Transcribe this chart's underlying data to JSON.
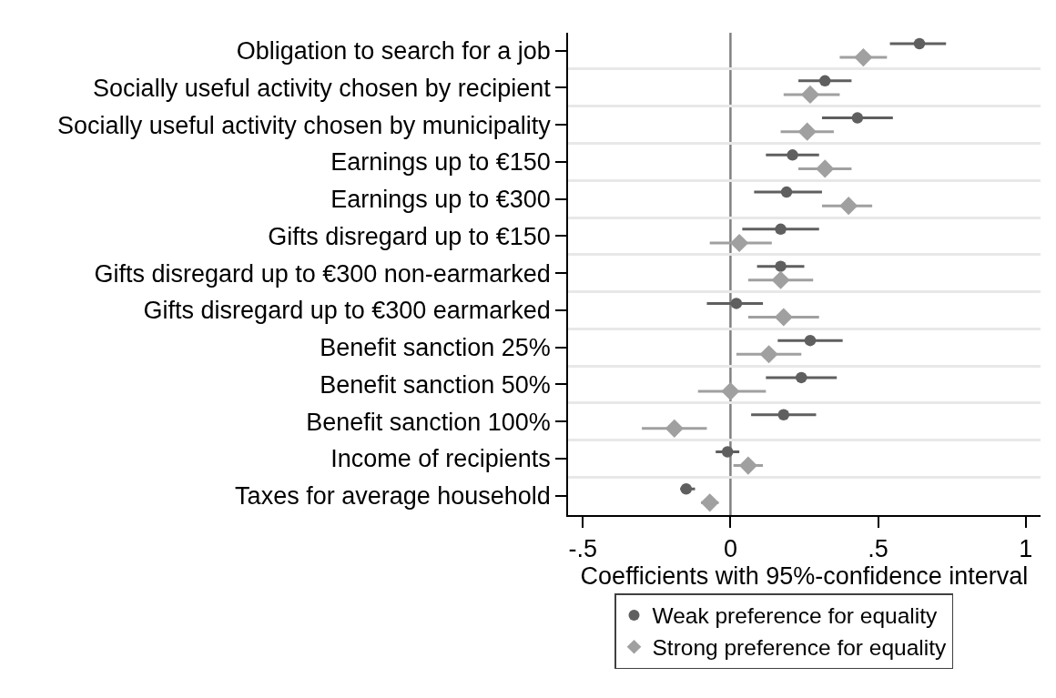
{
  "chart_data": {
    "type": "scatter",
    "orientation": "horizontal",
    "categories": [
      "Obligation to search for a job",
      "Socially useful activity chosen by recipient",
      "Socially useful activity chosen by municipality",
      "Earnings up to €150",
      "Earnings up to €300",
      "Gifts disregard up to €150",
      "Gifts disregard up to €300 non-earmarked",
      "Gifts disregard up to €300 earmarked",
      "Benefit sanction 25%",
      "Benefit sanction 50%",
      "Benefit sanction 100%",
      "Income of recipients",
      "Taxes for average household"
    ],
    "series": [
      {
        "name": "Weak preference for equality",
        "color": "#5f5f5f",
        "marker": "circle",
        "values": [
          0.64,
          0.32,
          0.43,
          0.21,
          0.19,
          0.17,
          0.17,
          0.02,
          0.27,
          0.24,
          0.18,
          -0.01,
          -0.15
        ],
        "errors": [
          [
            0.54,
            0.73
          ],
          [
            0.23,
            0.41
          ],
          [
            0.31,
            0.55
          ],
          [
            0.12,
            0.3
          ],
          [
            0.08,
            0.31
          ],
          [
            0.04,
            0.3
          ],
          [
            0.09,
            0.25
          ],
          [
            -0.08,
            0.11
          ],
          [
            0.16,
            0.38
          ],
          [
            0.12,
            0.36
          ],
          [
            0.07,
            0.29
          ],
          [
            -0.05,
            0.03
          ],
          [
            -0.17,
            -0.12
          ]
        ]
      },
      {
        "name": "Strong preference for equality",
        "color": "#a0a0a0",
        "marker": "diamond",
        "values": [
          0.45,
          0.27,
          0.26,
          0.32,
          0.4,
          0.03,
          0.17,
          0.18,
          0.13,
          0.0,
          -0.19,
          0.06,
          -0.07
        ],
        "errors": [
          [
            0.37,
            0.53
          ],
          [
            0.18,
            0.37
          ],
          [
            0.17,
            0.35
          ],
          [
            0.23,
            0.41
          ],
          [
            0.31,
            0.48
          ],
          [
            -0.07,
            0.14
          ],
          [
            0.06,
            0.28
          ],
          [
            0.06,
            0.3
          ],
          [
            0.02,
            0.24
          ],
          [
            -0.11,
            0.12
          ],
          [
            -0.3,
            -0.08
          ],
          [
            0.01,
            0.11
          ],
          [
            -0.1,
            -0.04
          ]
        ]
      }
    ],
    "xlabel": "Coefficients with 95%-confidence interval",
    "xlim": [
      -0.55,
      1.05
    ],
    "xticks": [
      {
        "value": -0.5,
        "label": "-.5"
      },
      0,
      {
        "value": 0.5,
        "label": ".5"
      },
      1
    ],
    "ref_lines": [
      {
        "axis": "x",
        "value": 0,
        "color": "#808080"
      }
    ],
    "grid": "y",
    "legend": "bottom"
  }
}
